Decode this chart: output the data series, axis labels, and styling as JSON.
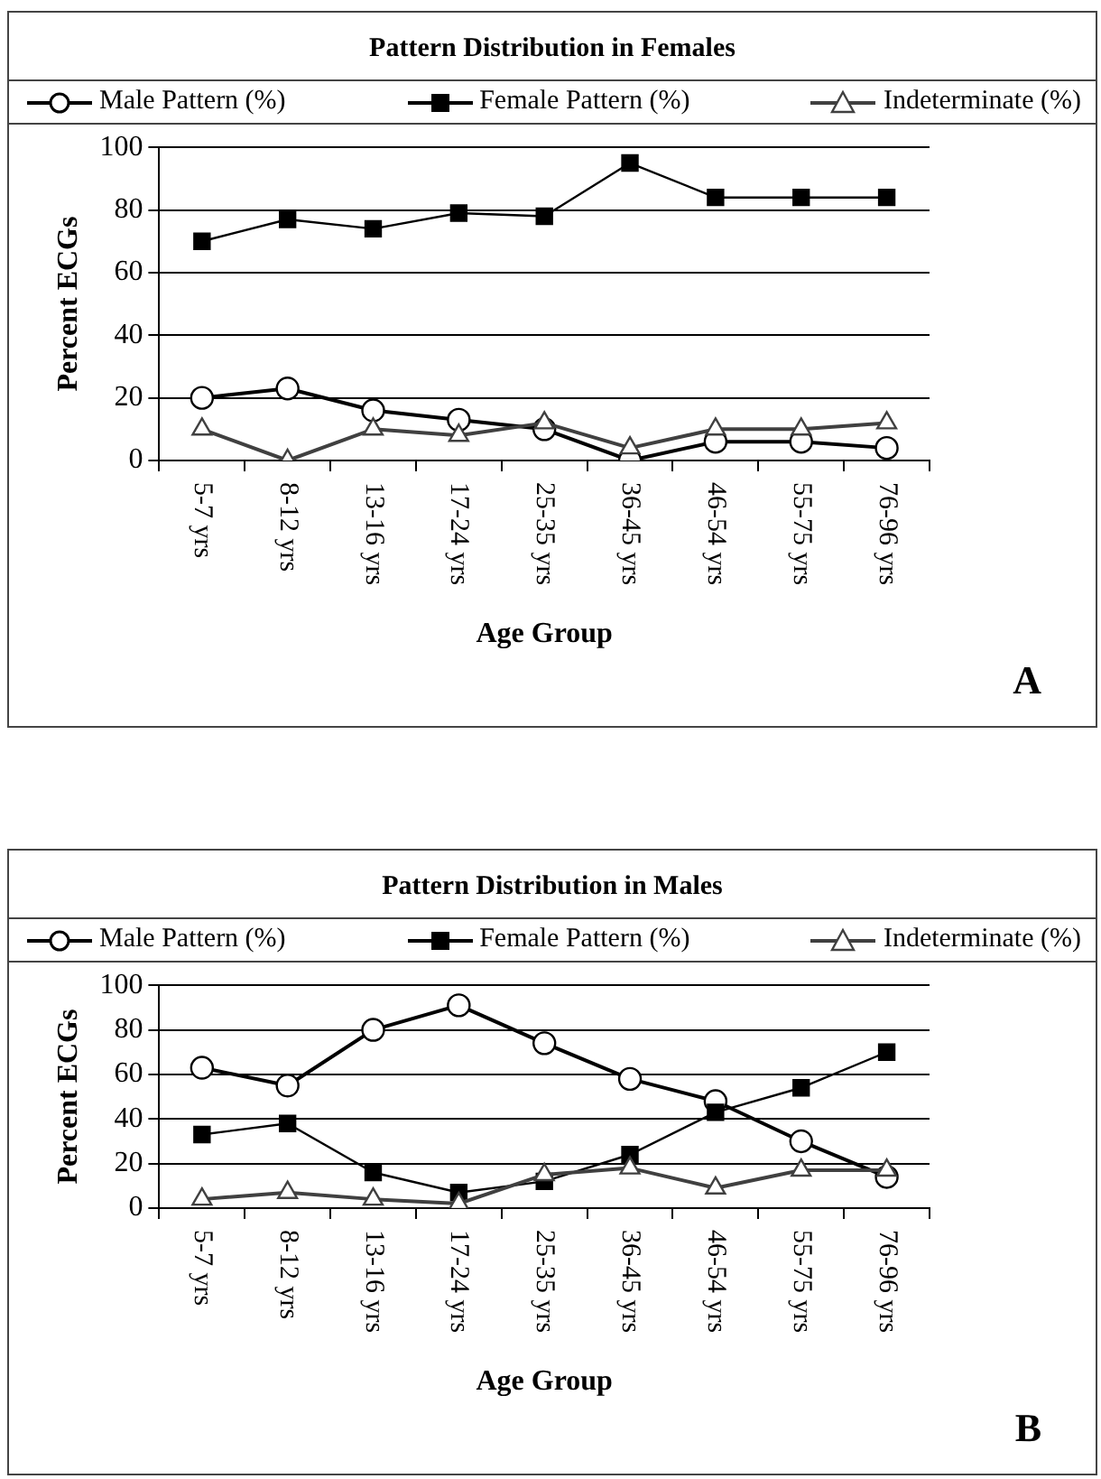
{
  "chart_data": [
    {
      "type": "line",
      "title": "Pattern Distribution in Females",
      "xlabel": "Age Group",
      "ylabel": "Percent ECGs",
      "categories": [
        "5-7 yrs",
        "8-12 yrs",
        "13-16 yrs",
        "17-24 yrs",
        "25-35 yrs",
        "36-45 yrs",
        "46-54 yrs",
        "55-75 yrs",
        "76-96 yrs"
      ],
      "series": [
        {
          "name": "Male Pattern (%)",
          "color": "#000000",
          "marker": "circle",
          "values": [
            20,
            23,
            16,
            13,
            10,
            0,
            6,
            6,
            4
          ]
        },
        {
          "name": "Female Pattern (%)",
          "color": "#000000",
          "marker": "square",
          "values": [
            70,
            77,
            74,
            79,
            78,
            95,
            84,
            84,
            84
          ]
        },
        {
          "name": "Indeterminate (%)",
          "color": "#404040",
          "marker": "triangle",
          "values": [
            10,
            0,
            10,
            8,
            12,
            4,
            10,
            10,
            12
          ]
        }
      ],
      "ylim": [
        0,
        100
      ],
      "yticks": [
        0,
        20,
        40,
        60,
        80,
        100
      ],
      "grid": "y",
      "legend": "top",
      "annotations": [
        "A"
      ]
    },
    {
      "type": "line",
      "title": "Pattern Distribution in Males",
      "xlabel": "Age Group",
      "ylabel": "Percent ECGs",
      "categories": [
        "5-7 yrs",
        "8-12 yrs",
        "13-16 yrs",
        "17-24 yrs",
        "25-35 yrs",
        "36-45 yrs",
        "46-54 yrs",
        "55-75 yrs",
        "76-96 yrs"
      ],
      "series": [
        {
          "name": "Male Pattern (%)",
          "color": "#000000",
          "marker": "circle",
          "values": [
            63,
            55,
            80,
            91,
            74,
            58,
            48,
            30,
            14
          ]
        },
        {
          "name": "Female Pattern (%)",
          "color": "#000000",
          "marker": "square",
          "values": [
            33,
            38,
            16,
            7,
            12,
            24,
            43,
            54,
            70
          ]
        },
        {
          "name": "Indeterminate (%)",
          "color": "#404040",
          "marker": "triangle",
          "values": [
            4,
            7,
            4,
            2,
            15,
            18,
            9,
            17,
            17
          ]
        }
      ],
      "ylim": [
        0,
        100
      ],
      "yticks": [
        0,
        20,
        40,
        60,
        80,
        100
      ],
      "grid": "y",
      "legend": "top",
      "annotations": [
        "B"
      ]
    }
  ]
}
